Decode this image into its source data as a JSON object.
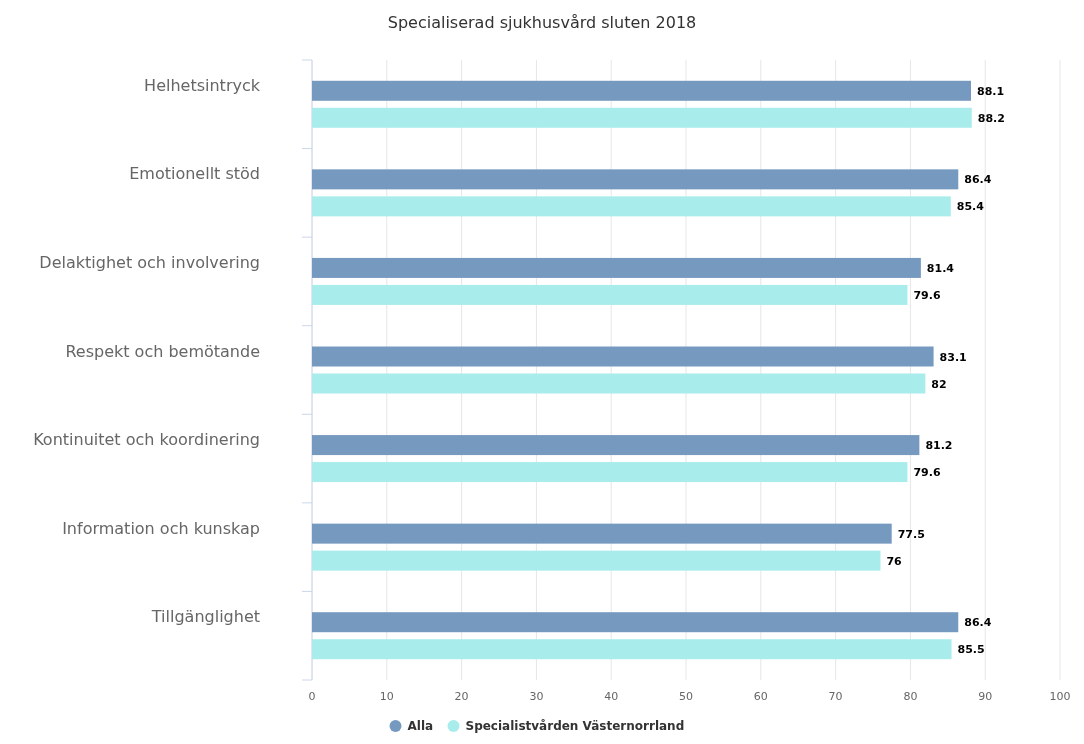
{
  "chart_data": {
    "type": "bar",
    "orientation": "horizontal",
    "title": "Specialiserad sjukhusvård sluten 2018",
    "categories": [
      "Helhetsintryck",
      "Emotionellt stöd",
      "Delaktighet och involvering",
      "Respekt och bemötande",
      "Kontinuitet och koordinering",
      "Information och kunskap",
      "Tillgänglighet"
    ],
    "series": [
      {
        "name": "Alla",
        "color": "#7699c0",
        "values": [
          88.1,
          86.4,
          81.4,
          83.1,
          81.2,
          77.5,
          86.4
        ]
      },
      {
        "name": "Specialistvården Västernorrland",
        "color": "#a8ecec",
        "values": [
          88.2,
          85.4,
          79.6,
          82,
          79.6,
          76,
          85.5
        ]
      }
    ],
    "xlim": [
      0,
      100
    ],
    "xticks": [
      0,
      10,
      20,
      30,
      40,
      50,
      60,
      70,
      80,
      90,
      100
    ],
    "grid": "x",
    "legend": "bottom",
    "data_labels": true
  }
}
